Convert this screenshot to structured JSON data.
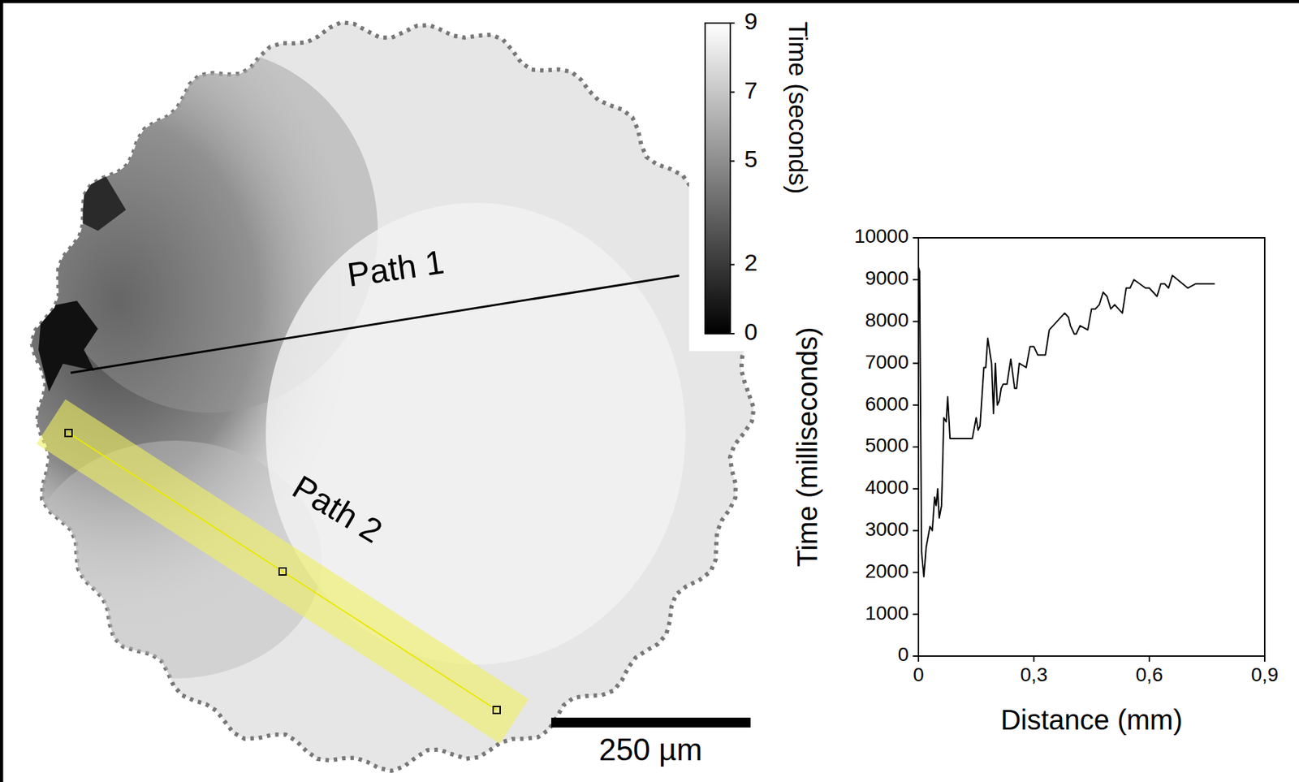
{
  "chart_data": [
    {
      "type": "image",
      "colorbar": {
        "label": "Time (seconds)",
        "range": [
          0,
          9
        ],
        "ticks": [
          0,
          2,
          5,
          7,
          9
        ]
      },
      "annotations": [
        "Path 1",
        "Path 2"
      ],
      "scale_bar": "250 µm"
    },
    {
      "type": "line",
      "color": "#000000",
      "x": [
        0,
        0.003,
        0.008,
        0.014,
        0.02,
        0.03,
        0.036,
        0.042,
        0.046,
        0.05,
        0.054,
        0.06,
        0.066,
        0.072,
        0.076,
        0.082,
        0.1,
        0.14,
        0.15,
        0.155,
        0.16,
        0.17,
        0.175,
        0.18,
        0.19,
        0.195,
        0.2,
        0.205,
        0.21,
        0.215,
        0.22,
        0.23,
        0.24,
        0.25,
        0.255,
        0.262,
        0.28,
        0.29,
        0.3,
        0.31,
        0.33,
        0.34,
        0.38,
        0.39,
        0.395,
        0.405,
        0.41,
        0.42,
        0.44,
        0.45,
        0.46,
        0.47,
        0.48,
        0.49,
        0.5,
        0.51,
        0.52,
        0.53,
        0.54,
        0.55,
        0.56,
        0.59,
        0.6,
        0.61,
        0.62,
        0.63,
        0.64,
        0.65,
        0.66,
        0.7,
        0.72,
        0.73,
        0.74,
        0.77
      ],
      "values": [
        9300,
        9200,
        2500,
        1900,
        2600,
        3100,
        3000,
        3800,
        3600,
        4000,
        3300,
        3600,
        5700,
        5600,
        6200,
        5200,
        5200,
        5200,
        5700,
        5400,
        5500,
        6900,
        6900,
        7600,
        7000,
        5800,
        7000,
        6000,
        6100,
        6400,
        6500,
        6500,
        7100,
        6400,
        6400,
        7000,
        6900,
        7400,
        7400,
        7200,
        7200,
        7800,
        8200,
        8100,
        7900,
        7700,
        7700,
        7900,
        7800,
        8300,
        8300,
        8400,
        8700,
        8600,
        8300,
        8400,
        8300,
        8200,
        8800,
        8800,
        9000,
        8800,
        8800,
        8700,
        8600,
        8900,
        8900,
        8800,
        9100,
        8800,
        8900,
        8900,
        8900,
        8900
      ],
      "xlim": [
        0,
        0.9
      ],
      "ylim": [
        0,
        10000
      ],
      "xticks": [
        0,
        {
          "value": 0.3,
          "label": "0,3"
        },
        {
          "value": 0.6,
          "label": "0,6"
        },
        {
          "value": 0.9,
          "label": "0,9"
        }
      ],
      "yticks": [
        0,
        1000,
        2000,
        3000,
        4000,
        5000,
        6000,
        7000,
        8000,
        9000,
        10000
      ],
      "xlabel": "Distance (mm)",
      "ylabel": "Time (milliseconds)"
    }
  ]
}
